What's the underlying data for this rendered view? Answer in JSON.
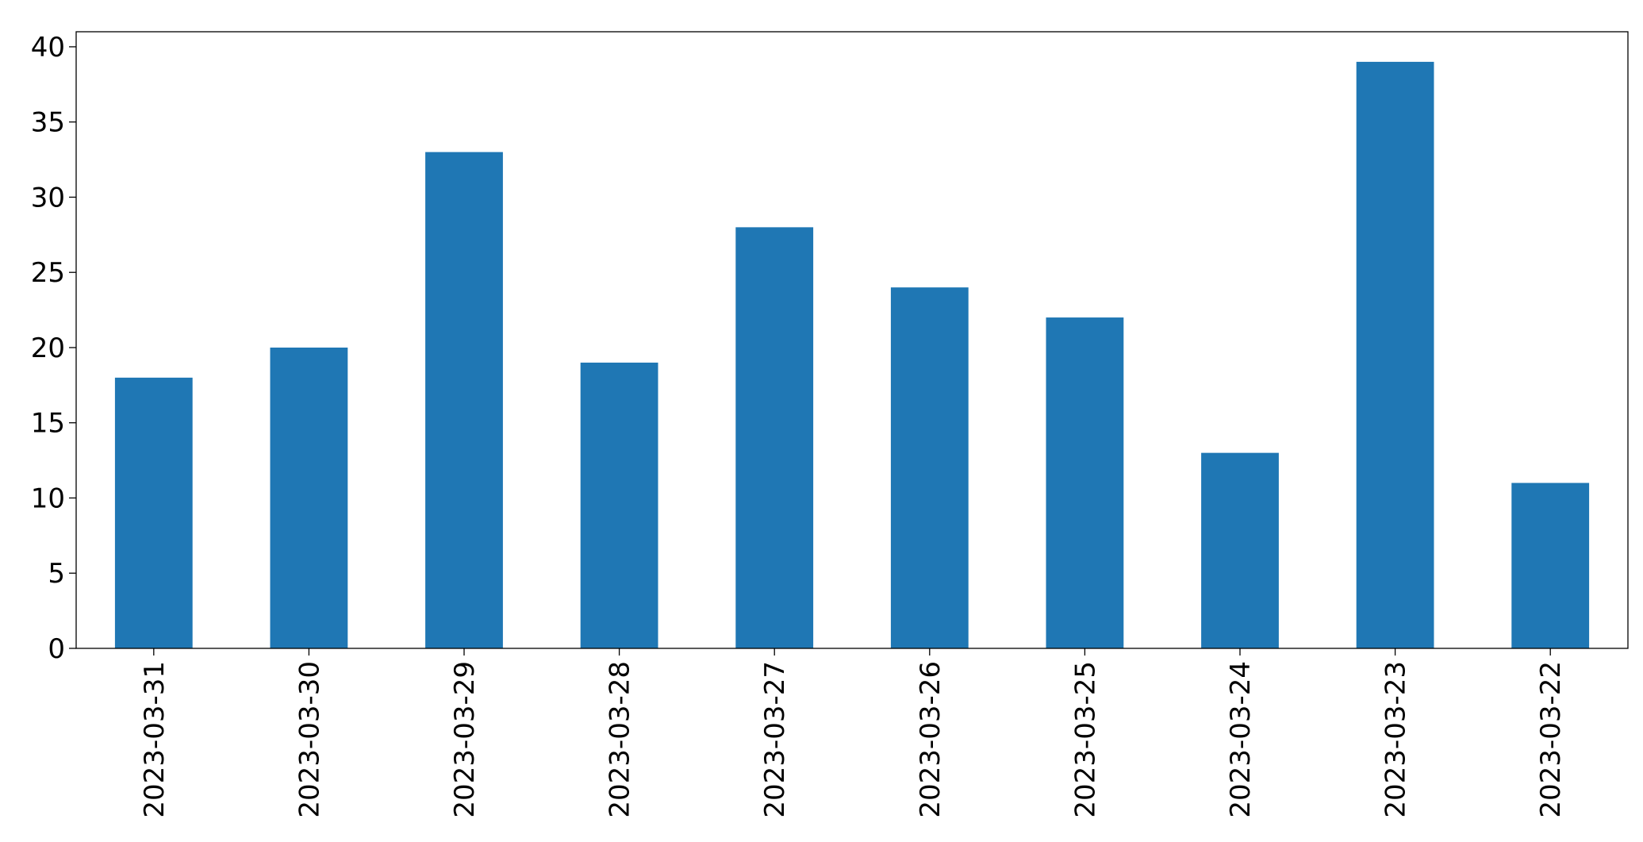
{
  "chart_data": {
    "type": "bar",
    "categories": [
      "2023-03-31",
      "2023-03-30",
      "2023-03-29",
      "2023-03-28",
      "2023-03-27",
      "2023-03-26",
      "2023-03-25",
      "2023-03-24",
      "2023-03-23",
      "2023-03-22"
    ],
    "values": [
      18,
      20,
      33,
      19,
      28,
      24,
      22,
      13,
      39,
      11
    ],
    "color": "#1f77b4",
    "ylim": [
      0,
      41
    ],
    "yticks": [
      0,
      5,
      10,
      15,
      20,
      25,
      30,
      35,
      40
    ],
    "grid": false
  }
}
